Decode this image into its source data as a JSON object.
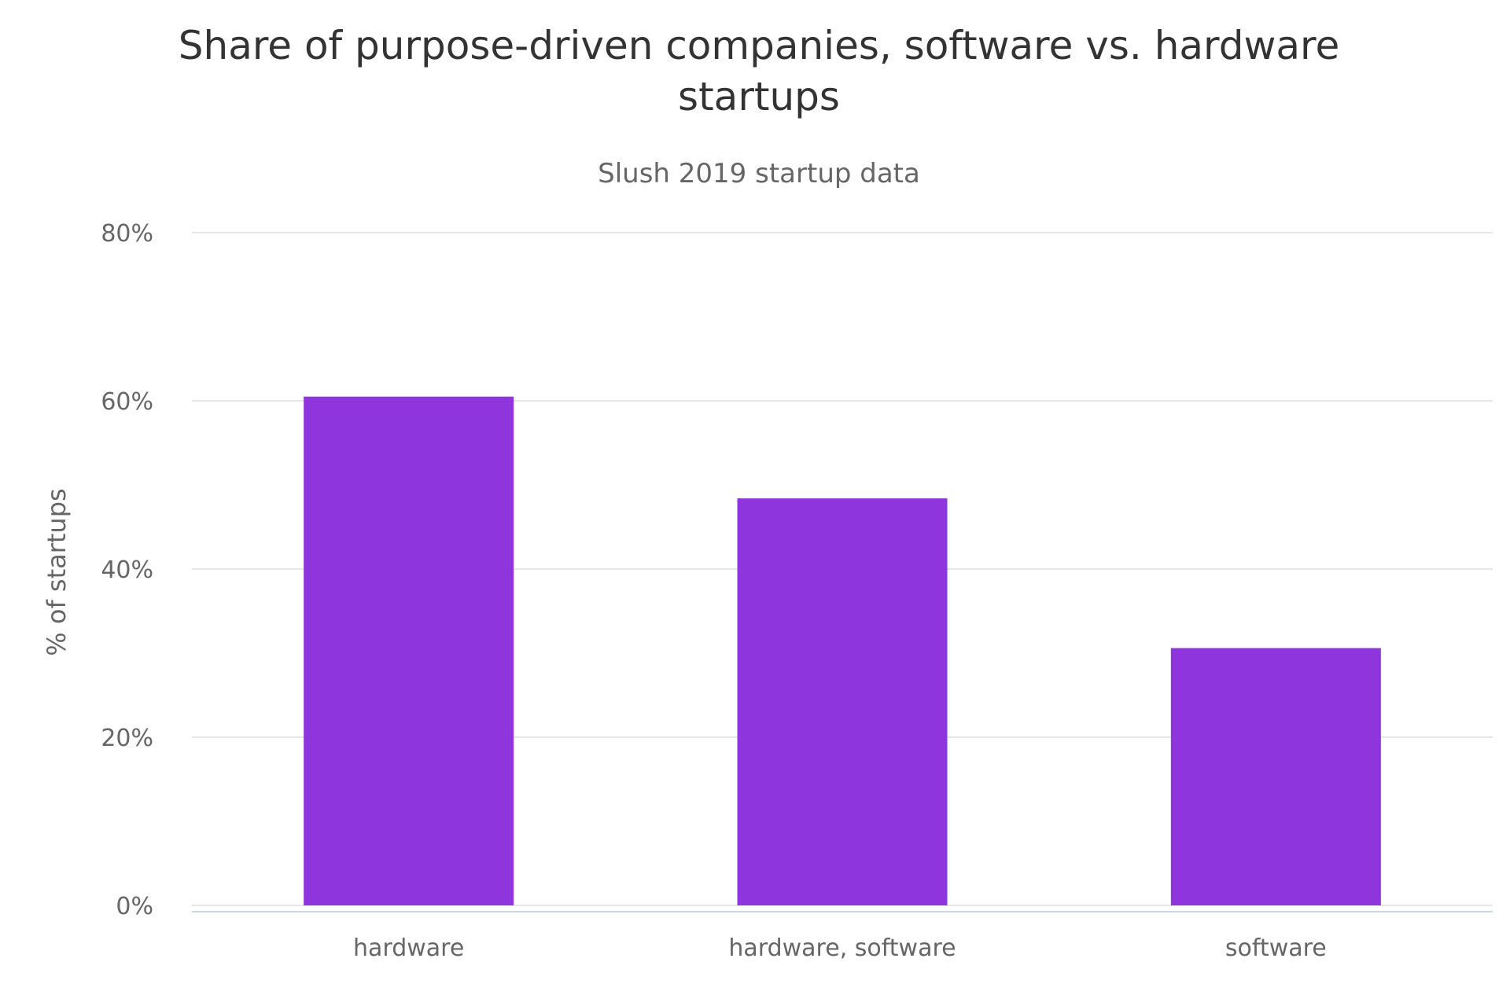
{
  "chart_data": {
    "type": "bar",
    "title_lines": [
      "Share of purpose-driven companies, software vs. hardware",
      "startups"
    ],
    "subtitle": "Slush 2019 startup data",
    "xlabel": "",
    "ylabel": "% of startups",
    "categories": [
      "hardware",
      "hardware, software",
      "software"
    ],
    "values": [
      60.5,
      48.4,
      30.6
    ],
    "ylim": [
      0,
      80
    ],
    "yticks": [
      0,
      20,
      40,
      60,
      80
    ],
    "ytick_labels": [
      "0%",
      "20%",
      "40%",
      "60%",
      "80%"
    ],
    "grid": true,
    "legend": "none",
    "bar_color": "#8e35dd"
  }
}
